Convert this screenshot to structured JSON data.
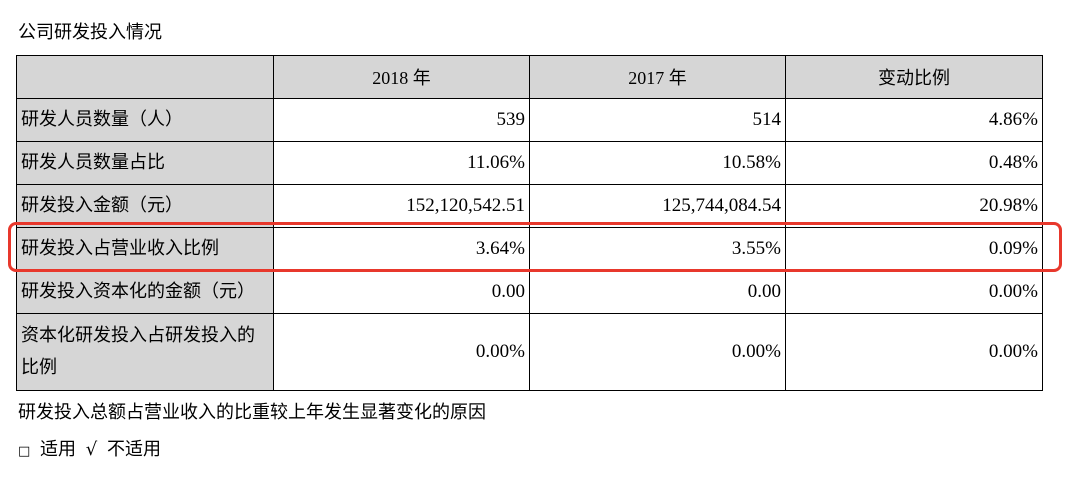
{
  "title": "公司研发投入情况",
  "table": {
    "headers": [
      "",
      "2018 年",
      "2017 年",
      "变动比例"
    ],
    "rows": [
      {
        "label": "研发人员数量（人）",
        "y2018": "539",
        "y2017": "514",
        "change": "4.86%"
      },
      {
        "label": "研发人员数量占比",
        "y2018": "11.06%",
        "y2017": "10.58%",
        "change": "0.48%"
      },
      {
        "label": "研发投入金额（元）",
        "y2018": "152,120,542.51",
        "y2017": "125,744,084.54",
        "change": "20.98%"
      },
      {
        "label": "研发投入占营业收入比例",
        "y2018": "3.64%",
        "y2017": "3.55%",
        "change": "0.09%"
      },
      {
        "label": "研发投入资本化的金额（元）",
        "y2018": "0.00",
        "y2017": "0.00",
        "change": "0.00%"
      },
      {
        "label": "资本化研发投入占研发投入的比例",
        "y2018": "0.00%",
        "y2017": "0.00%",
        "change": "0.00%"
      }
    ]
  },
  "highlight": {
    "color": "#e8382c",
    "row_label": "研发投入占营业收入比例"
  },
  "note": "研发投入总额占营业收入的比重较上年发生显著变化的原因",
  "options": {
    "applicable_box": "□",
    "applicable_label": "适用",
    "not_applicable_mark": "√",
    "not_applicable_label": "不适用"
  }
}
